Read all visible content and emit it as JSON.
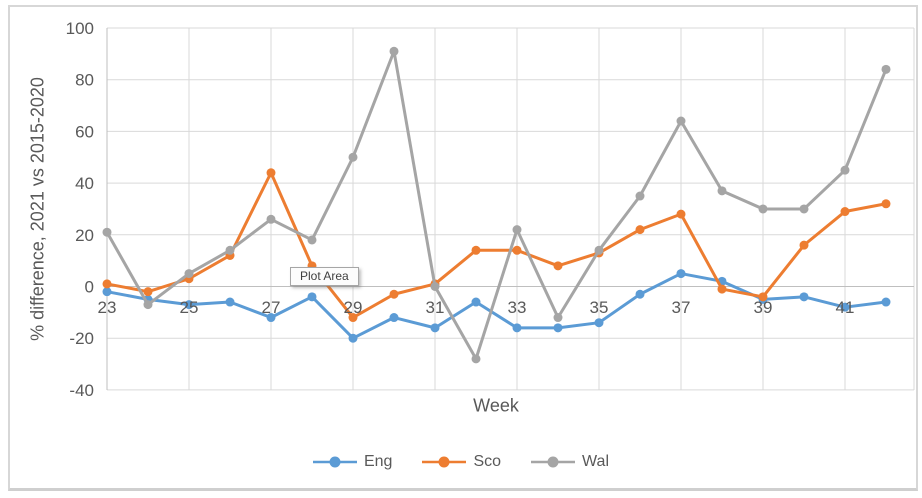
{
  "tooltip": {
    "text": "Plot Area"
  },
  "chart_data": {
    "type": "line",
    "title": "",
    "xlabel": "Week",
    "ylabel": "% difference, 2021 vs 2015-2020",
    "x": [
      23,
      24,
      25,
      26,
      27,
      28,
      29,
      30,
      31,
      32,
      33,
      34,
      35,
      36,
      37,
      38,
      39,
      40,
      41,
      42
    ],
    "x_ticks": [
      23,
      25,
      27,
      29,
      31,
      33,
      35,
      37,
      39,
      41
    ],
    "y_ticks": [
      100,
      80,
      60,
      40,
      20,
      0,
      -20,
      -40
    ],
    "ylim": [
      -40,
      100
    ],
    "grid": true,
    "legend_position": "bottom",
    "series": [
      {
        "name": "Eng",
        "color": "#5B9BD5",
        "values": [
          -2,
          -5,
          -7,
          -6,
          -12,
          -4,
          -20,
          -12,
          -16,
          -6,
          -16,
          -16,
          -14,
          -3,
          5,
          2,
          -5,
          -4,
          -8,
          -6
        ]
      },
      {
        "name": "Sco",
        "color": "#ED7D31",
        "values": [
          1,
          -2,
          3,
          12,
          44,
          8,
          -12,
          -3,
          1,
          14,
          14,
          8,
          13,
          22,
          28,
          -1,
          -4,
          16,
          29,
          32
        ]
      },
      {
        "name": "Wal",
        "color": "#A5A5A5",
        "values": [
          21,
          -7,
          5,
          14,
          26,
          18,
          50,
          91,
          0,
          -28,
          22,
          -12,
          14,
          35,
          64,
          37,
          30,
          30,
          45,
          84
        ]
      }
    ],
    "colors": {
      "gridline": "#D9D9D9",
      "axis_line": "#BFBFBF",
      "tick_text": "#595959"
    }
  }
}
